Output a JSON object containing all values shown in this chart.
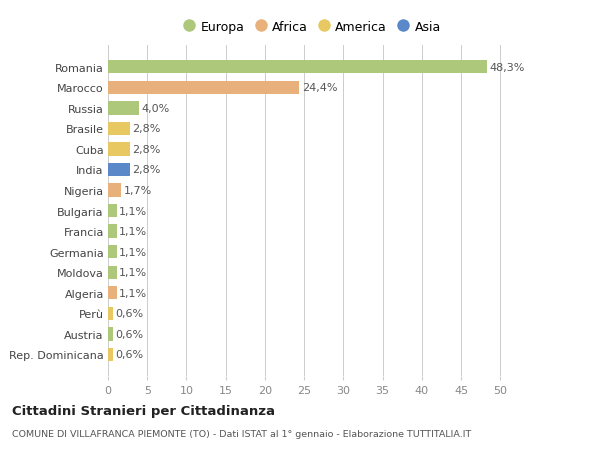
{
  "countries": [
    "Romania",
    "Marocco",
    "Russia",
    "Brasile",
    "Cuba",
    "India",
    "Nigeria",
    "Bulgaria",
    "Francia",
    "Germania",
    "Moldova",
    "Algeria",
    "Perù",
    "Austria",
    "Rep. Dominicana"
  ],
  "values": [
    48.3,
    24.4,
    4.0,
    2.8,
    2.8,
    2.8,
    1.7,
    1.1,
    1.1,
    1.1,
    1.1,
    1.1,
    0.6,
    0.6,
    0.6
  ],
  "labels": [
    "48,3%",
    "24,4%",
    "4,0%",
    "2,8%",
    "2,8%",
    "2,8%",
    "1,7%",
    "1,1%",
    "1,1%",
    "1,1%",
    "1,1%",
    "1,1%",
    "0,6%",
    "0,6%",
    "0,6%"
  ],
  "colors": [
    "#adc87a",
    "#e8b07a",
    "#adc87a",
    "#e8c860",
    "#e8c860",
    "#5a88c8",
    "#e8b07a",
    "#adc87a",
    "#adc87a",
    "#adc87a",
    "#adc87a",
    "#e8b07a",
    "#e8c860",
    "#adc87a",
    "#e8c860"
  ],
  "legend_labels": [
    "Europa",
    "Africa",
    "America",
    "Asia"
  ],
  "legend_colors": [
    "#adc87a",
    "#e8b07a",
    "#e8c860",
    "#5a88c8"
  ],
  "title": "Cittadini Stranieri per Cittadinanza",
  "subtitle": "COMUNE DI VILLAFRANCA PIEMONTE (TO) - Dati ISTAT al 1° gennaio - Elaborazione TUTTITALIA.IT",
  "xlim": [
    0,
    52
  ],
  "xticks": [
    0,
    5,
    10,
    15,
    20,
    25,
    30,
    35,
    40,
    45,
    50
  ],
  "bg_color": "#ffffff",
  "plot_bg_color": "#ffffff",
  "bar_height": 0.65,
  "label_fontsize": 8,
  "ytick_fontsize": 8,
  "xtick_fontsize": 8
}
